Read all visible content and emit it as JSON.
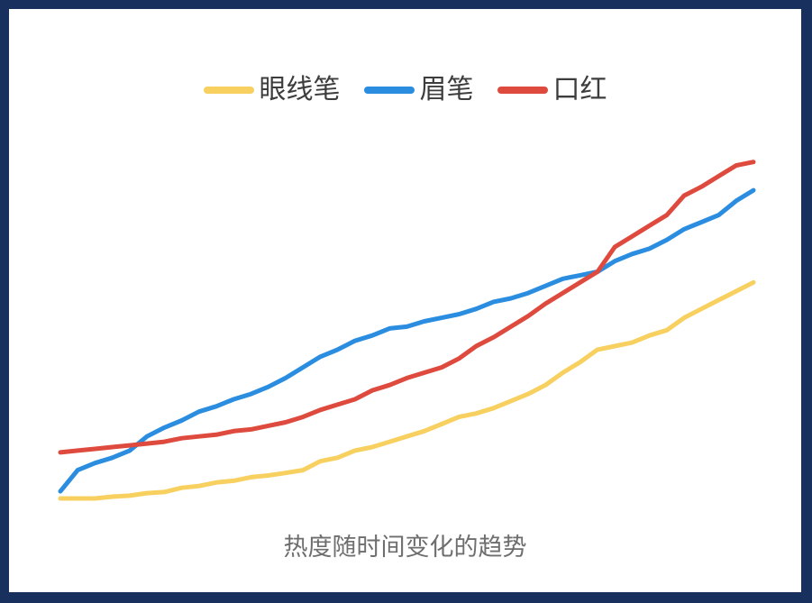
{
  "chart_data": {
    "type": "line",
    "title": "",
    "subtitle": "",
    "xlabel": "",
    "ylabel": "",
    "caption": "热度随时间变化的趋势",
    "grid": false,
    "axes_visible": false,
    "legend_position": "top-center",
    "ylim": [
      0,
      100
    ],
    "x": [
      0,
      1,
      2,
      3,
      4,
      5,
      6,
      7,
      8,
      9,
      10,
      11,
      12,
      13,
      14,
      15,
      16,
      17,
      18,
      19,
      20,
      21,
      22,
      23,
      24,
      25,
      26,
      27,
      28,
      29,
      30,
      31,
      32,
      33,
      34,
      35,
      36,
      37,
      38,
      39,
      40
    ],
    "series": [
      {
        "name": "眼线笔",
        "color": "#f8d060",
        "values": [
          0,
          0,
          0,
          0.5,
          0.8,
          1.5,
          1.8,
          3,
          3.5,
          4.5,
          5,
          6,
          6.5,
          7.2,
          8,
          10.5,
          11.5,
          13.5,
          14.5,
          16,
          17.5,
          19,
          21,
          23,
          24,
          25.5,
          27.5,
          29.5,
          32,
          35.5,
          38.5,
          42,
          43,
          44,
          46,
          47.5,
          51,
          53.5,
          56,
          58.5,
          61
        ]
      },
      {
        "name": "眉笔",
        "color": "#2a8de0",
        "values": [
          2,
          8,
          10,
          11.5,
          13.5,
          17.5,
          20,
          22,
          24.5,
          26,
          28,
          29.5,
          31.5,
          34,
          37,
          40,
          42,
          44.5,
          46,
          48,
          48.5,
          50,
          51,
          52,
          53.5,
          55.5,
          56.5,
          58,
          60,
          62,
          63,
          64,
          67,
          69,
          70.5,
          73,
          76,
          78,
          80,
          84,
          87
        ]
      },
      {
        "name": "口红",
        "color": "#de4a3d",
        "values": [
          13,
          13.5,
          14,
          14.5,
          15,
          15.5,
          16,
          17,
          17.5,
          18,
          19,
          19.5,
          20.5,
          21.5,
          23,
          25,
          26.5,
          28,
          30.5,
          32,
          34,
          35.5,
          37,
          39.5,
          43,
          45.5,
          48.5,
          51.5,
          55,
          58,
          61,
          64,
          71,
          74,
          77,
          80,
          85.5,
          88,
          91,
          94,
          95
        ]
      }
    ]
  }
}
